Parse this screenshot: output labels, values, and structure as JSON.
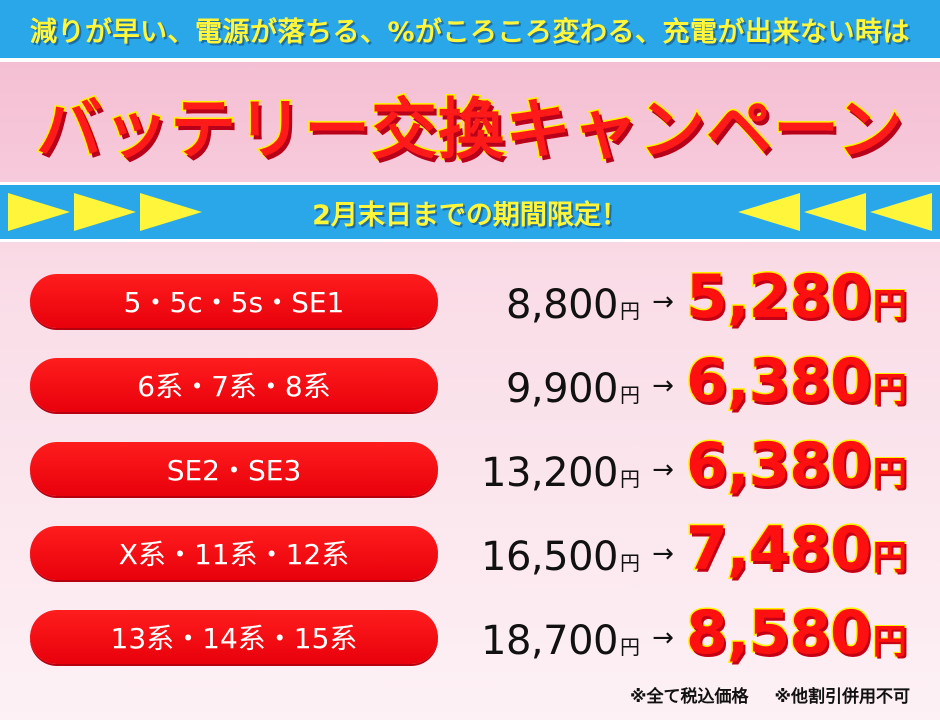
{
  "banner": {
    "top_text": "減りが早い、電源が落ちる、%がころころ変わる、充電が出来ない時は",
    "headline": "バッテリー交換キャンペーン",
    "period": "2月末日までの期間限定！"
  },
  "price_rows": [
    {
      "models": "5・5c・5s・SE1",
      "old_price": "8,800",
      "new_price": "5,280"
    },
    {
      "models": "6系・7系・8系",
      "old_price": "9,900",
      "new_price": "6,380"
    },
    {
      "models": "SE2・SE3",
      "old_price": "13,200",
      "new_price": "6,380"
    },
    {
      "models": "X系・11系・12系",
      "old_price": "16,500",
      "new_price": "7,480"
    },
    {
      "models": "13系・14系・15系",
      "old_price": "18,700",
      "new_price": "8,580"
    }
  ],
  "currency_unit": "円",
  "arrow_glyph": "→",
  "notes": {
    "tax": "※全て税込価格",
    "discount": "※他割引併用不可"
  },
  "colors": {
    "band_blue": "#29a7e8",
    "headline_red": "#ff1a1a",
    "accent_yellow": "#fff200",
    "pill_red": "#ff1d1d"
  }
}
